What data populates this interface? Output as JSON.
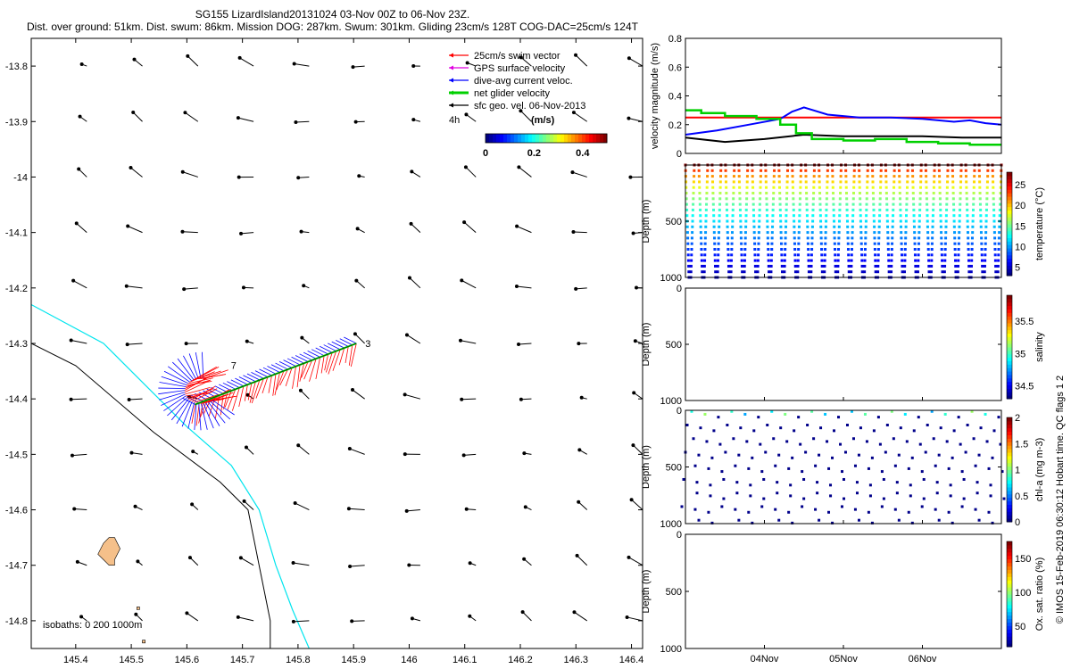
{
  "title_line1": "SG155 LizardIsland20131024 03-Nov 00Z to 06-Nov 23Z.",
  "title_line2": "Dist. over ground: 51km. Dist. swum: 86km. Mission DOG: 287km. Swum: 301km. Gliding 23cm/s 128T COG-DAC=25cm/s 124T",
  "credit": "© IMOS 15-Feb-2019 06:30:12 Hobart time. QC flags 1  2",
  "colors": {
    "swim": "#ff0000",
    "gps": "#e000e0",
    "dac": "#0000ff",
    "net": "#00d000",
    "geo": "#000000",
    "coast_cyan": "#00e5ee",
    "coast_black": "#000000",
    "island": "#f5c08a"
  },
  "chart_data": [
    {
      "type": "map",
      "xlim": [
        145.32,
        146.42
      ],
      "ylim": [
        -14.85,
        -13.75
      ],
      "xticks": [
        145.4,
        145.5,
        145.6,
        145.7,
        145.8,
        145.9,
        146,
        146.1,
        146.2,
        146.3,
        146.4
      ],
      "xtick_labels": [
        "145.4",
        "145.5",
        "145.6",
        "145.7",
        "145.8",
        "145.9",
        "146",
        "146.1",
        "146.2",
        "146.3",
        "146.4"
      ],
      "yticks": [
        -13.8,
        -13.9,
        -14,
        -14.1,
        -14.2,
        -14.3,
        -14.4,
        -14.5,
        -14.6,
        -14.7,
        -14.8
      ],
      "ytick_labels": [
        "-13.8",
        "-13.9",
        "-14",
        "-14.1",
        "-14.2",
        "-14.3",
        "-14.4",
        "-14.5",
        "-14.6",
        "-14.7",
        "-14.8"
      ],
      "legend": {
        "placement": "top-right",
        "entries": [
          {
            "label": "25cm/s swim vector",
            "color": "#ff0000"
          },
          {
            "label": "GPS surface velocity",
            "color": "#e000e0"
          },
          {
            "label": "dive-avg current veloc.",
            "color": "#0000ff"
          },
          {
            "label": "net glider velocity",
            "color": "#00d000"
          },
          {
            "label": "sfc geo. vel. 06-Nov-2013",
            "color": "#000000"
          }
        ],
        "interval_label": "4h",
        "colorbar_label": "(m/s)",
        "colorbar_ticks": [
          "0",
          "0.2",
          "0.4"
        ],
        "colorbar_range": [
          0,
          0.5
        ]
      },
      "isobaths_label": "isobaths: 0   200  1000m",
      "track_start_label": "3",
      "track_end_label": "7",
      "track_start": [
        145.905,
        -14.3
      ],
      "track_end": [
        145.615,
        -14.41
      ],
      "track_curl_center": [
        145.625,
        -14.37
      ],
      "coast_cyan": [
        [
          145.32,
          -14.23
        ],
        [
          145.45,
          -14.3
        ],
        [
          145.6,
          -14.45
        ],
        [
          145.68,
          -14.52
        ],
        [
          145.73,
          -14.6
        ],
        [
          145.76,
          -14.7
        ],
        [
          145.79,
          -14.78
        ],
        [
          145.82,
          -14.85
        ]
      ],
      "coast_black": [
        [
          145.32,
          -14.3
        ],
        [
          145.4,
          -14.34
        ],
        [
          145.54,
          -14.46
        ],
        [
          145.66,
          -14.55
        ],
        [
          145.71,
          -14.6
        ],
        [
          145.73,
          -14.7
        ],
        [
          145.75,
          -14.8
        ],
        [
          145.75,
          -14.85
        ]
      ],
      "islands": [
        [
          [
            145.45,
            -14.66
          ],
          [
            145.46,
            -14.65
          ],
          [
            145.47,
            -14.65
          ],
          [
            145.48,
            -14.67
          ],
          [
            145.47,
            -14.69
          ],
          [
            145.47,
            -14.7
          ],
          [
            145.46,
            -14.7
          ],
          [
            145.45,
            -14.69
          ],
          [
            145.44,
            -14.68
          ]
        ],
        [
          [
            145.51,
            -14.775
          ],
          [
            145.515,
            -14.775
          ],
          [
            145.515,
            -14.78
          ],
          [
            145.51,
            -14.78
          ]
        ],
        [
          [
            145.52,
            -14.835
          ],
          [
            145.525,
            -14.835
          ],
          [
            145.525,
            -14.84
          ],
          [
            145.52,
            -14.84
          ]
        ]
      ],
      "geo_vectors_lon": [
        145.42,
        145.52,
        145.62,
        145.72,
        145.82,
        145.92,
        146.02,
        146.12,
        146.22,
        146.32,
        146.42
      ],
      "geo_vectors_lat": [
        -13.8,
        -13.9,
        -14.0,
        -14.1,
        -14.2,
        -14.3,
        -14.4,
        -14.5,
        -14.6,
        -14.7,
        -14.8
      ]
    },
    {
      "type": "line",
      "ylabel": "velocity magnitude (m/s)",
      "ylim": [
        0,
        0.8
      ],
      "yticks": [
        0,
        0.2,
        0.4,
        0.6,
        0.8
      ],
      "ytick_labels": [
        "0",
        "0.2",
        "0.4",
        "0.6",
        "0.8"
      ],
      "xlim": [
        0,
        4
      ],
      "series": [
        {
          "color": "#ff0000",
          "x": [
            0,
            4
          ],
          "y": [
            0.25,
            0.25
          ]
        },
        {
          "color": "#0000ff",
          "x": [
            0,
            0.4,
            0.8,
            1.2,
            1.35,
            1.5,
            1.8,
            2.2,
            2.6,
            3.0,
            3.4,
            3.6,
            3.8,
            4.0
          ],
          "y": [
            0.13,
            0.16,
            0.2,
            0.24,
            0.29,
            0.32,
            0.27,
            0.25,
            0.25,
            0.24,
            0.22,
            0.23,
            0.21,
            0.2
          ]
        },
        {
          "color": "#000000",
          "x": [
            0,
            0.5,
            1.0,
            1.5,
            2.0,
            2.5,
            3.0,
            3.5,
            4.0
          ],
          "y": [
            0.11,
            0.08,
            0.1,
            0.13,
            0.12,
            0.12,
            0.12,
            0.11,
            0.11
          ]
        },
        {
          "color": "#00d000",
          "x": [
            0,
            0.2,
            0.2,
            0.5,
            0.5,
            0.9,
            0.9,
            1.2,
            1.2,
            1.4,
            1.4,
            1.6,
            1.6,
            2.0,
            2.0,
            2.4,
            2.4,
            2.8,
            2.8,
            3.2,
            3.2,
            3.6,
            3.6,
            4.0
          ],
          "y": [
            0.3,
            0.3,
            0.28,
            0.28,
            0.26,
            0.26,
            0.24,
            0.24,
            0.2,
            0.2,
            0.14,
            0.14,
            0.1,
            0.1,
            0.09,
            0.09,
            0.1,
            0.1,
            0.08,
            0.08,
            0.07,
            0.07,
            0.06,
            0.06
          ]
        }
      ]
    },
    {
      "type": "scatter",
      "ylabel": "Depth (m)",
      "ylim": [
        1000,
        0
      ],
      "yticks": [
        500,
        1000
      ],
      "ytick_labels": [
        "500",
        "1000"
      ],
      "xlim": [
        0,
        4
      ],
      "dive_count": 24,
      "colorbar_label": "temperature (°C)",
      "colorbar_ticks": [
        "5",
        "10",
        "15",
        "20",
        "25"
      ],
      "colorbar_range": [
        3,
        28
      ]
    },
    {
      "type": "scatter",
      "ylabel": "Depth (m)",
      "ylim": [
        1000,
        0
      ],
      "yticks": [
        0,
        500,
        1000
      ],
      "ytick_labels": [
        "0",
        "500",
        "1000"
      ],
      "xlim": [
        0,
        4
      ],
      "colorbar_label": "salinity",
      "colorbar_ticks": [
        "34.5",
        "35",
        "35.5"
      ],
      "colorbar_range": [
        34.3,
        35.9
      ]
    },
    {
      "type": "scatter",
      "ylabel": "Depth (m)",
      "ylim": [
        1000,
        0
      ],
      "yticks": [
        0,
        500,
        1000
      ],
      "ytick_labels": [
        "0",
        "500",
        "1000"
      ],
      "xlim": [
        0,
        4
      ],
      "dive_count": 24,
      "colorbar_label": "chl-a (mg m-3)",
      "colorbar_ticks": [
        "0",
        "0.5",
        "1",
        "1.5",
        "2"
      ],
      "colorbar_range": [
        0,
        2
      ]
    },
    {
      "type": "scatter",
      "ylabel": "Depth (m)",
      "ylim": [
        1000,
        0
      ],
      "yticks": [
        0,
        500,
        1000
      ],
      "ytick_labels": [
        "0",
        "500",
        "1000"
      ],
      "xlim": [
        0,
        4
      ],
      "xtick_labels": [
        "04Nov",
        "05Nov",
        "06Nov"
      ],
      "xticks": [
        1,
        2,
        3
      ],
      "colorbar_label": "Ox. sat. ratio (%)",
      "colorbar_ticks": [
        "50",
        "100",
        "150"
      ],
      "colorbar_range": [
        20,
        175
      ]
    }
  ]
}
